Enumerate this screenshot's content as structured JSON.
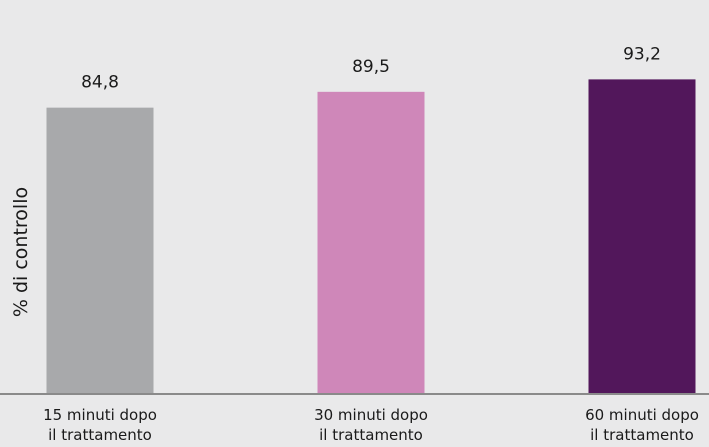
{
  "chart_data": {
    "type": "bar",
    "ylabel": "% di controllo",
    "categories": [
      {
        "line1": "15 minuti dopo",
        "line2": "il trattamento"
      },
      {
        "line1": "30 minuti dopo",
        "line2": "il trattamento"
      },
      {
        "line1": "60 minuti dopo",
        "line2": "il trattamento"
      }
    ],
    "values": [
      84.8,
      89.5,
      93.2
    ],
    "value_labels": [
      "84,8",
      "89,5",
      "93,2"
    ],
    "colors": [
      "#a8a9ab",
      "#cf87b9",
      "#52175b"
    ],
    "grid": false
  }
}
